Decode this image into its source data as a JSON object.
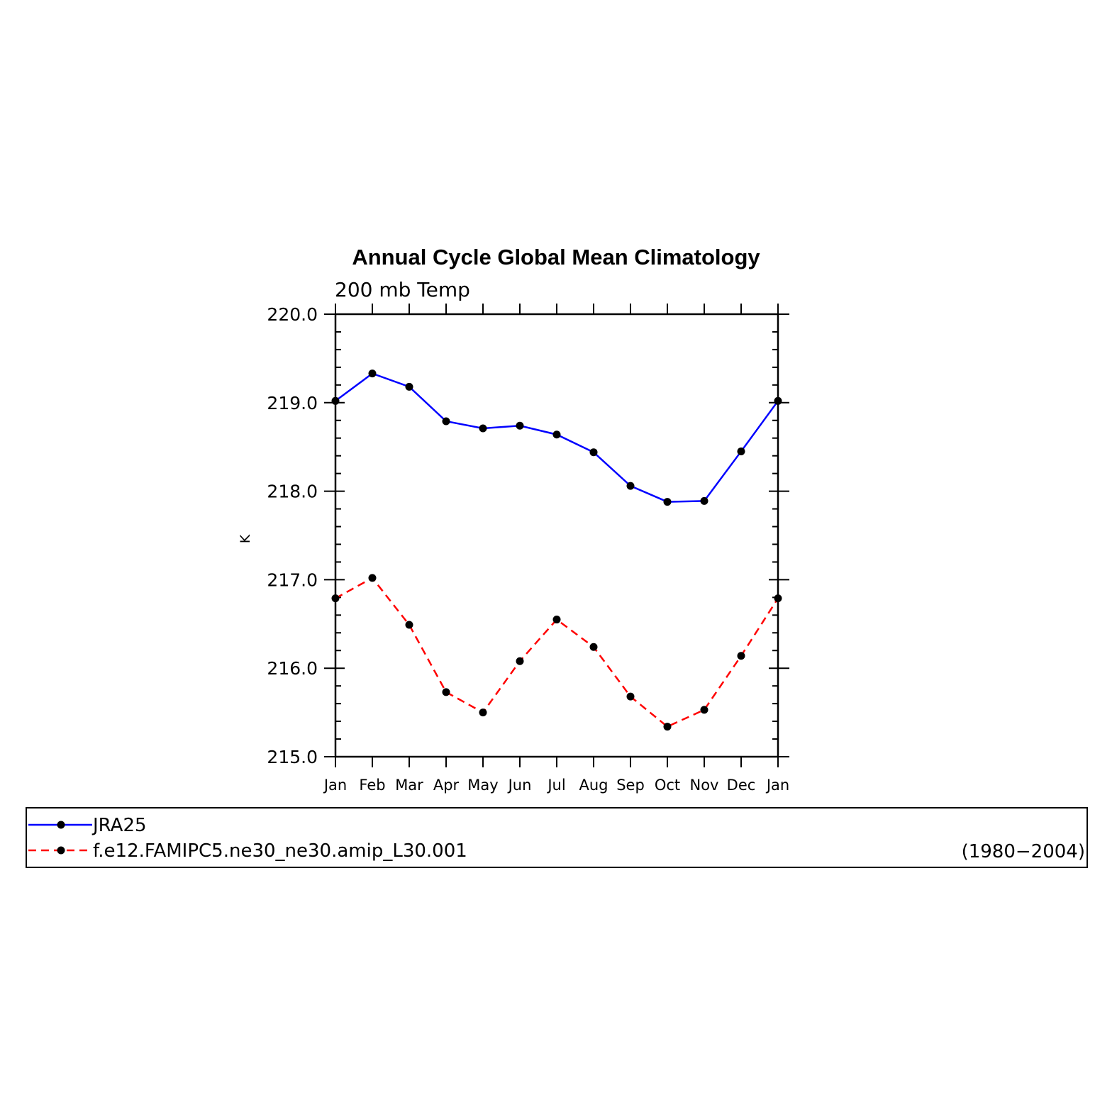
{
  "chart_data": {
    "type": "line",
    "title": "Annual Cycle Global Mean Climatology",
    "subtitle": "200 mb Temp",
    "ylabel": "K",
    "xlabel": "",
    "categories": [
      "Jan",
      "Feb",
      "Mar",
      "Apr",
      "May",
      "Jun",
      "Jul",
      "Aug",
      "Sep",
      "Oct",
      "Nov",
      "Dec",
      "Jan"
    ],
    "ylim": [
      215.0,
      220.0
    ],
    "yticks": [
      "215.0",
      "216.0",
      "217.0",
      "218.0",
      "219.0",
      "220.0"
    ],
    "grid": false,
    "legend_position": "bottom",
    "legend_note": "(1980−2004)",
    "series": [
      {
        "name": "JRA25",
        "color": "#0000ff",
        "dash": "solid",
        "marker": "filled-circle",
        "values": [
          219.02,
          219.33,
          219.18,
          218.79,
          218.71,
          218.74,
          218.64,
          218.44,
          218.06,
          217.88,
          217.89,
          218.45,
          219.02
        ]
      },
      {
        "name": "f.e12.FAMIPC5.ne30_ne30.amip_L30.001",
        "color": "#ff0000",
        "dash": "dashed",
        "marker": "filled-circle",
        "values": [
          216.79,
          217.02,
          216.49,
          215.73,
          215.5,
          216.08,
          216.55,
          216.24,
          215.68,
          215.34,
          215.53,
          216.14,
          216.79
        ]
      }
    ]
  }
}
